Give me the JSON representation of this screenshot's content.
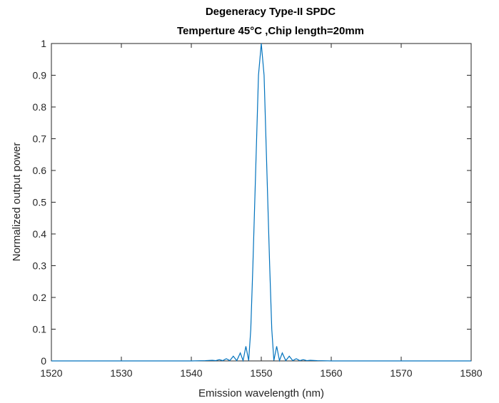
{
  "chart_data": {
    "type": "line",
    "title": "Degeneracy Type-II SPDC",
    "subtitle": "Temperture 45°C ,Chip length=20mm",
    "xlabel": "Emission wavelength (nm)",
    "ylabel": "Normalized output power",
    "xlim": [
      1520,
      1580
    ],
    "ylim": [
      0,
      1
    ],
    "xticks": [
      1520,
      1530,
      1540,
      1550,
      1560,
      1570,
      1580
    ],
    "yticks": [
      0,
      0.1,
      0.2,
      0.3,
      0.4,
      0.5,
      0.6,
      0.7,
      0.8,
      0.9,
      1
    ],
    "ytick_labels": [
      "0",
      "0.1",
      "0.2",
      "0.3",
      "0.4",
      "0.5",
      "0.6",
      "0.7",
      "0.8",
      "0.9",
      "1"
    ],
    "grid": false,
    "line_color": "#0072BD",
    "series": [
      {
        "x": [
          1520,
          1540,
          1542,
          1543,
          1543.5,
          1544,
          1544.5,
          1545,
          1545.5,
          1546,
          1546.5,
          1547,
          1547.4,
          1547.8,
          1548.2,
          1548.5,
          1548.8,
          1549.2,
          1549.6,
          1550,
          1550.4,
          1550.8,
          1551.2,
          1551.5,
          1551.8,
          1552.2,
          1552.6,
          1553,
          1553.5,
          1554,
          1554.5,
          1555,
          1555.5,
          1556,
          1556.5,
          1557,
          1558,
          1560,
          1580
        ],
        "y": [
          0,
          0,
          0.001,
          0.002,
          0.001,
          0.004,
          0.001,
          0.007,
          0.001,
          0.015,
          0.001,
          0.025,
          0.001,
          0.046,
          0.001,
          0.1,
          0.3,
          0.6,
          0.9,
          1.0,
          0.9,
          0.6,
          0.3,
          0.1,
          0.001,
          0.046,
          0.001,
          0.025,
          0.001,
          0.015,
          0.001,
          0.007,
          0.001,
          0.004,
          0.001,
          0.002,
          0.001,
          0,
          0
        ]
      }
    ]
  }
}
